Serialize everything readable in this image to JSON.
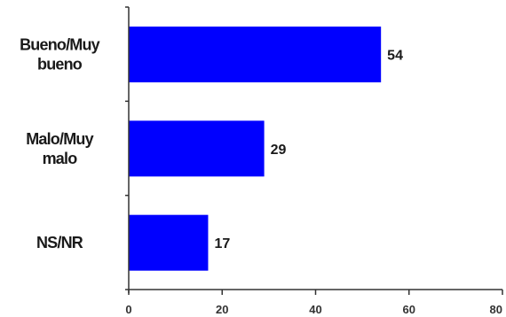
{
  "chart_data": {
    "type": "bar",
    "orientation": "horizontal",
    "categories": [
      [
        "Bueno/Muy",
        "bueno"
      ],
      [
        "Malo/Muy",
        "malo"
      ],
      [
        "NS/NR"
      ]
    ],
    "values": [
      54,
      29,
      17
    ],
    "data_labels": [
      "54",
      "29",
      "17"
    ],
    "xlim": [
      0,
      80
    ],
    "x_ticks": [
      0,
      20,
      40,
      60,
      80
    ],
    "x_tick_labels": [
      "0",
      "20",
      "40",
      "60",
      "80"
    ],
    "grid": false,
    "legend": "none",
    "bar_color": "#0000ff",
    "title": "",
    "xlabel": "",
    "ylabel": ""
  }
}
